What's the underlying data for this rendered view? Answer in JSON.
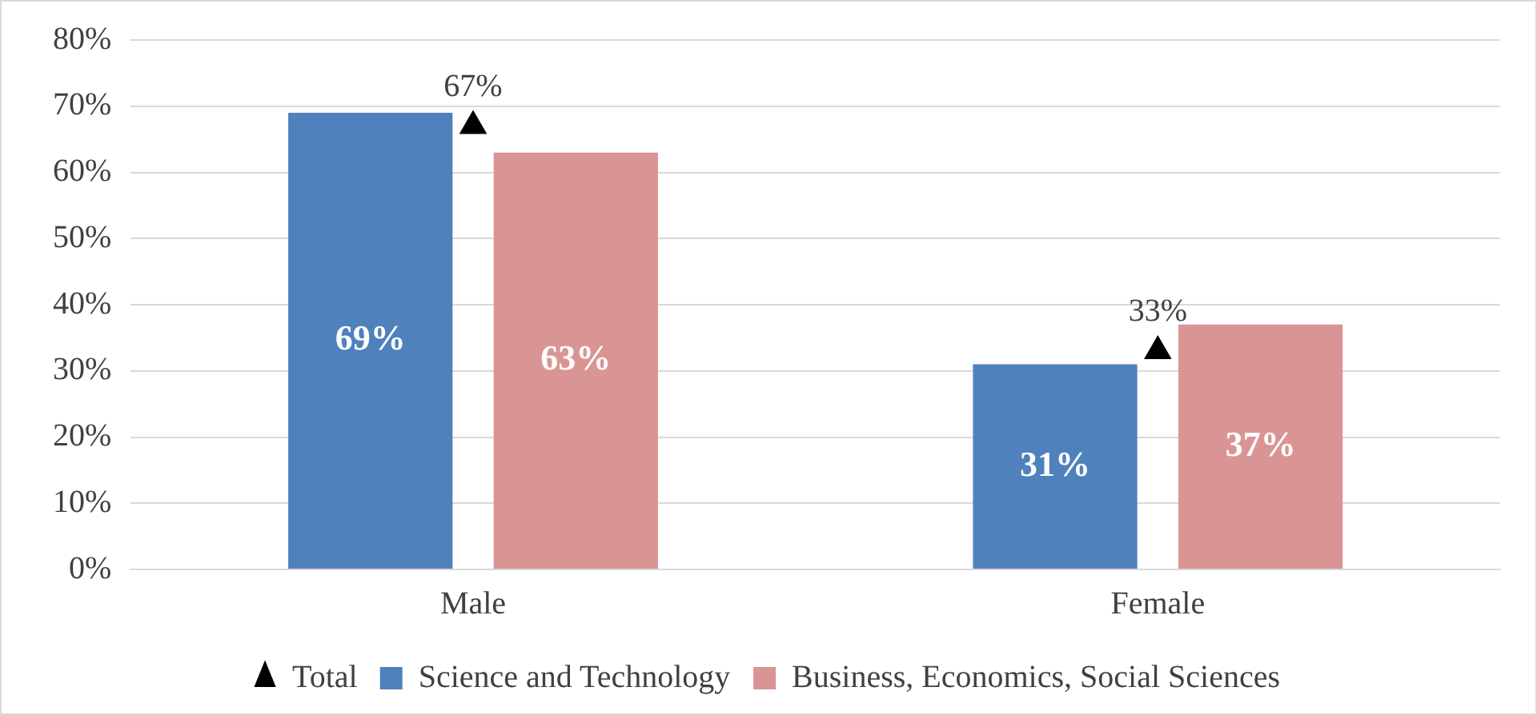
{
  "chart_data": {
    "type": "bar",
    "categories": [
      "Male",
      "Female"
    ],
    "series": [
      {
        "name": "Science and Technology",
        "color": "#4f81bd",
        "values": [
          69,
          31
        ],
        "value_labels": [
          "69%",
          "31%"
        ]
      },
      {
        "name": "Business, Economics, Social Sciences",
        "color": "#d99594",
        "values": [
          63,
          37
        ],
        "value_labels": [
          "63%",
          "37%"
        ]
      },
      {
        "name": "Total",
        "type": "scatter",
        "marker": "triangle",
        "color": "#000000",
        "x": [
          "Male",
          "Female"
        ],
        "values": [
          67,
          33
        ],
        "value_labels": [
          "67%",
          "33%"
        ]
      }
    ],
    "ylim": [
      0,
      80
    ],
    "yticks": [
      {
        "value": 0,
        "label": "0%"
      },
      {
        "value": 10,
        "label": "10%"
      },
      {
        "value": 20,
        "label": "20%"
      },
      {
        "value": 30,
        "label": "30%"
      },
      {
        "value": 40,
        "label": "40%"
      },
      {
        "value": 50,
        "label": "50%"
      },
      {
        "value": 60,
        "label": "60%"
      },
      {
        "value": 70,
        "label": "70%"
      },
      {
        "value": 80,
        "label": "80%"
      }
    ],
    "grid": "y",
    "legend": "bottom"
  }
}
